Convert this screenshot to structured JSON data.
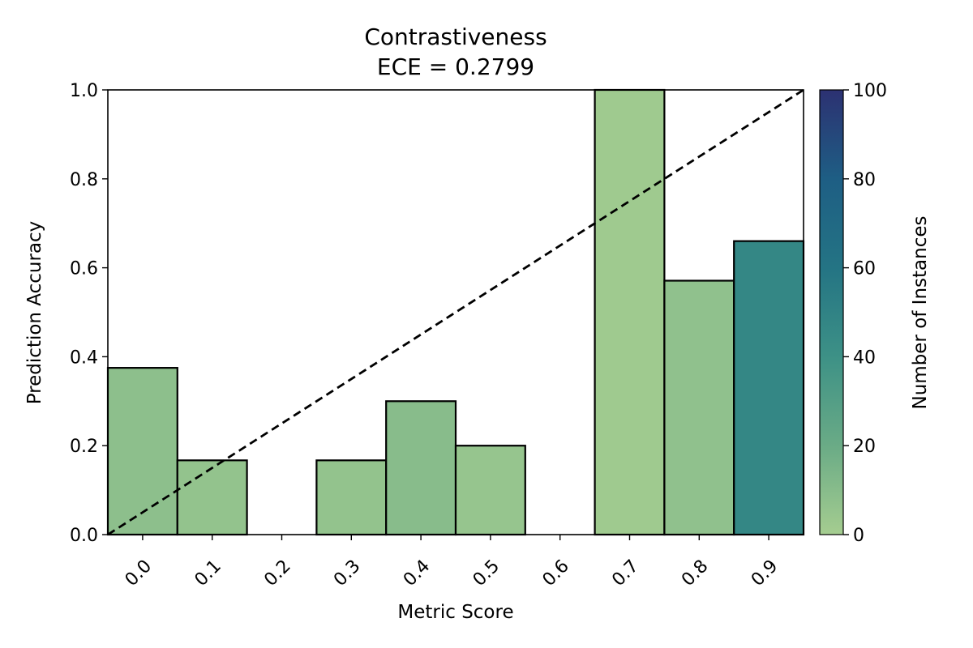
{
  "chart_data": {
    "type": "bar",
    "title": "Contrastiveness",
    "subtitle": "ECE = 0.2799",
    "xlabel": "Metric Score",
    "ylabel": "Prediction Accuracy",
    "categories": [
      "0.0",
      "0.1",
      "0.2",
      "0.3",
      "0.4",
      "0.5",
      "0.6",
      "0.7",
      "0.8",
      "0.9"
    ],
    "bin_edges": [
      -0.05,
      0.05,
      0.15,
      0.25,
      0.35,
      0.45,
      0.55,
      0.65,
      0.75,
      0.85,
      0.95
    ],
    "values": [
      0.375,
      0.167,
      0.0,
      0.167,
      0.3,
      0.2,
      0.0,
      1.0,
      0.571,
      0.66
    ],
    "counts": [
      8,
      6,
      0,
      6,
      10,
      5,
      0,
      2,
      7,
      47
    ],
    "xlim": [
      -0.05,
      0.95
    ],
    "ylim": [
      0,
      1
    ],
    "yticks": [
      "0.0",
      "0.2",
      "0.4",
      "0.6",
      "0.8",
      "1.0"
    ],
    "reference_line": {
      "style": "dashed",
      "color": "#000000",
      "from": [
        -0.05,
        0.0
      ],
      "to": [
        0.95,
        1.0
      ]
    },
    "colorbar": {
      "label": "Number of Instances",
      "range": [
        0,
        100
      ],
      "ticks": [
        "0",
        "20",
        "40",
        "60",
        "80",
        "100"
      ],
      "colormap": "crest",
      "colors": [
        "#a5cd90",
        "#6aab86",
        "#3d9186",
        "#247484",
        "#1e5e84",
        "#2c3172"
      ]
    },
    "grid": false,
    "legend": "none"
  }
}
